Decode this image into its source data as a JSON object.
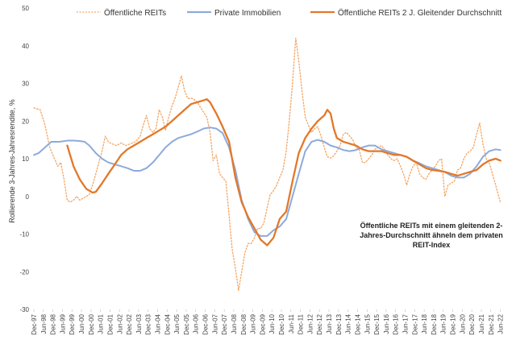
{
  "chart_data": {
    "type": "line",
    "title": "",
    "ylabel": "Rollierende 3-Jahres-Jahresrendite, %",
    "xlabel": "",
    "ylim": [
      -30,
      50
    ],
    "yticks": [
      -30,
      -20,
      -10,
      0,
      10,
      20,
      30,
      40,
      50
    ],
    "grid": false,
    "legend_position": "top",
    "xlim": [
      1997.917,
      2022.9
    ],
    "x_tick_labels": [
      "Dec-97",
      "Jun-98",
      "Dec-98",
      "Jun-99",
      "Dec-99",
      "Jun-00",
      "Dec-00",
      "Jun-01",
      "Dec-01",
      "Jun-02",
      "Dec-02",
      "Jun-03",
      "Dec-03",
      "Jun-04",
      "Dec-04",
      "Jun-05",
      "Dec-05",
      "Jun-06",
      "Dec-06",
      "Jun-07",
      "Dec-07",
      "Jun-08",
      "Dec-08",
      "Jun-09",
      "Dec-09",
      "Jun-10",
      "Dec-10",
      "Jun-11",
      "Dec-11",
      "Jun-12",
      "Dec-12",
      "Jun-13",
      "Dec-13",
      "Jun-14",
      "Dec-14",
      "Jun-15",
      "Dec-15",
      "Jun-16",
      "Dec-16",
      "Jun-17",
      "Dec-17",
      "Jun-18",
      "Dec-18",
      "Jun-19",
      "Dec-19",
      "Jun-20",
      "Dec-20",
      "Jun-21",
      "Dec-21",
      "Jun-22"
    ],
    "annotation": [
      "Öffentliche REITs mit einem gleitenden 2-",
      "Jahres-Durchschnitt ähneln dem privaten",
      "REIT-Index"
    ],
    "series": [
      {
        "name": "Öffentliche REITs",
        "color": "#f4a460",
        "style": "dotted",
        "points": [
          [
            1997.92,
            23.5
          ],
          [
            1998.25,
            23
          ],
          [
            1998.5,
            19
          ],
          [
            1998.75,
            13
          ],
          [
            1999.0,
            10
          ],
          [
            1999.17,
            8
          ],
          [
            1999.33,
            9
          ],
          [
            1999.5,
            4.5
          ],
          [
            1999.67,
            -1
          ],
          [
            1999.83,
            -1.5
          ],
          [
            2000.0,
            -1
          ],
          [
            2000.17,
            0
          ],
          [
            2000.33,
            -1
          ],
          [
            2000.5,
            -0.5
          ],
          [
            2000.67,
            0
          ],
          [
            2000.83,
            0.5
          ],
          [
            2001.0,
            3
          ],
          [
            2001.17,
            6
          ],
          [
            2001.33,
            9
          ],
          [
            2001.5,
            12
          ],
          [
            2001.67,
            16
          ],
          [
            2001.83,
            14.5
          ],
          [
            2002.0,
            14
          ],
          [
            2002.25,
            13.5
          ],
          [
            2002.5,
            14.2
          ],
          [
            2002.75,
            13.5
          ],
          [
            2003.0,
            14
          ],
          [
            2003.25,
            14.5
          ],
          [
            2003.5,
            16
          ],
          [
            2003.67,
            19
          ],
          [
            2003.83,
            21.5
          ],
          [
            2004.0,
            18
          ],
          [
            2004.17,
            17
          ],
          [
            2004.33,
            18
          ],
          [
            2004.5,
            23
          ],
          [
            2004.67,
            21
          ],
          [
            2004.83,
            17.5
          ],
          [
            2005.0,
            21
          ],
          [
            2005.17,
            24
          ],
          [
            2005.33,
            26
          ],
          [
            2005.5,
            29
          ],
          [
            2005.67,
            32
          ],
          [
            2005.83,
            28
          ],
          [
            2006.0,
            26
          ],
          [
            2006.25,
            26
          ],
          [
            2006.5,
            25
          ],
          [
            2006.75,
            23
          ],
          [
            2007.0,
            21
          ],
          [
            2007.17,
            17
          ],
          [
            2007.33,
            9.5
          ],
          [
            2007.5,
            11
          ],
          [
            2007.67,
            6
          ],
          [
            2007.83,
            5
          ],
          [
            2008.0,
            4
          ],
          [
            2008.17,
            -5
          ],
          [
            2008.33,
            -14
          ],
          [
            2008.5,
            -19
          ],
          [
            2008.67,
            -25
          ],
          [
            2008.83,
            -20
          ],
          [
            2009.0,
            -15
          ],
          [
            2009.17,
            -12.5
          ],
          [
            2009.33,
            -12.5
          ],
          [
            2009.5,
            -11
          ],
          [
            2009.67,
            -8.5
          ],
          [
            2009.83,
            -8.5
          ],
          [
            2010.0,
            -7
          ],
          [
            2010.17,
            -3
          ],
          [
            2010.33,
            0.5
          ],
          [
            2010.5,
            1.5
          ],
          [
            2010.67,
            3
          ],
          [
            2010.83,
            5
          ],
          [
            2011.0,
            7
          ],
          [
            2011.17,
            12
          ],
          [
            2011.33,
            20
          ],
          [
            2011.5,
            30
          ],
          [
            2011.67,
            42
          ],
          [
            2011.83,
            36
          ],
          [
            2012.0,
            28
          ],
          [
            2012.17,
            21
          ],
          [
            2012.33,
            19
          ],
          [
            2012.5,
            17
          ],
          [
            2012.67,
            18
          ],
          [
            2012.83,
            18.5
          ],
          [
            2013.0,
            16
          ],
          [
            2013.17,
            13
          ],
          [
            2013.33,
            10.5
          ],
          [
            2013.5,
            10.2
          ],
          [
            2013.67,
            10.8
          ],
          [
            2013.83,
            12
          ],
          [
            2014.0,
            13.5
          ],
          [
            2014.17,
            16.5
          ],
          [
            2014.33,
            17
          ],
          [
            2014.5,
            16
          ],
          [
            2014.67,
            15
          ],
          [
            2014.83,
            13
          ],
          [
            2015.0,
            12.5
          ],
          [
            2015.17,
            9
          ],
          [
            2015.33,
            9
          ],
          [
            2015.5,
            10
          ],
          [
            2015.67,
            11
          ],
          [
            2015.83,
            12.5
          ],
          [
            2016.0,
            13
          ],
          [
            2016.17,
            13.5
          ],
          [
            2016.33,
            12.5
          ],
          [
            2016.5,
            11
          ],
          [
            2016.67,
            10
          ],
          [
            2016.83,
            9.5
          ],
          [
            2017.0,
            10
          ],
          [
            2017.17,
            8
          ],
          [
            2017.33,
            6
          ],
          [
            2017.5,
            3
          ],
          [
            2017.67,
            6
          ],
          [
            2017.83,
            8
          ],
          [
            2018.0,
            9
          ],
          [
            2018.17,
            6
          ],
          [
            2018.33,
            5
          ],
          [
            2018.5,
            4.5
          ],
          [
            2018.67,
            6
          ],
          [
            2018.83,
            7
          ],
          [
            2019.0,
            8
          ],
          [
            2019.17,
            9.5
          ],
          [
            2019.33,
            10
          ],
          [
            2019.5,
            0
          ],
          [
            2019.67,
            3
          ],
          [
            2019.83,
            3.5
          ],
          [
            2020.0,
            4
          ],
          [
            2020.17,
            7
          ],
          [
            2020.33,
            7.5
          ],
          [
            2020.5,
            10
          ],
          [
            2020.67,
            11.5
          ],
          [
            2020.83,
            12
          ],
          [
            2021.0,
            13
          ],
          [
            2021.17,
            16.5
          ],
          [
            2021.33,
            19.5
          ],
          [
            2021.5,
            14
          ],
          [
            2021.67,
            10
          ],
          [
            2021.83,
            9
          ],
          [
            2022.0,
            6
          ],
          [
            2022.17,
            3
          ],
          [
            2022.33,
            0
          ],
          [
            2022.42,
            -1.5
          ]
        ]
      },
      {
        "name": "Private Immobilien",
        "color": "#8eaadb",
        "style": "solid",
        "points": [
          [
            1997.92,
            11
          ],
          [
            1998.17,
            11.5
          ],
          [
            1998.5,
            13
          ],
          [
            1998.83,
            14.5
          ],
          [
            1999.25,
            14.5
          ],
          [
            1999.67,
            14.8
          ],
          [
            2000.0,
            14.8
          ],
          [
            2000.33,
            14.7
          ],
          [
            2000.58,
            14.5
          ],
          [
            2000.83,
            13.5
          ],
          [
            2001.17,
            11.5
          ],
          [
            2001.5,
            10
          ],
          [
            2001.83,
            9
          ],
          [
            2002.17,
            8.5
          ],
          [
            2002.5,
            8
          ],
          [
            2002.83,
            7.5
          ],
          [
            2003.17,
            6.8
          ],
          [
            2003.5,
            6.8
          ],
          [
            2003.83,
            7.5
          ],
          [
            2004.17,
            9
          ],
          [
            2004.5,
            11
          ],
          [
            2004.83,
            13
          ],
          [
            2005.17,
            14.5
          ],
          [
            2005.5,
            15.5
          ],
          [
            2005.83,
            16
          ],
          [
            2006.17,
            16.5
          ],
          [
            2006.5,
            17.2
          ],
          [
            2006.83,
            18
          ],
          [
            2007.17,
            18.3
          ],
          [
            2007.5,
            18
          ],
          [
            2007.83,
            16.8
          ],
          [
            2008.17,
            13
          ],
          [
            2008.5,
            7
          ],
          [
            2008.83,
            -1
          ],
          [
            2009.17,
            -6
          ],
          [
            2009.5,
            -9.5
          ],
          [
            2009.83,
            -10.5
          ],
          [
            2010.17,
            -10.5
          ],
          [
            2010.5,
            -9
          ],
          [
            2010.83,
            -8
          ],
          [
            2011.17,
            -6
          ],
          [
            2011.5,
            0
          ],
          [
            2011.83,
            6
          ],
          [
            2012.17,
            12
          ],
          [
            2012.5,
            14.5
          ],
          [
            2012.83,
            15
          ],
          [
            2013.17,
            14.5
          ],
          [
            2013.5,
            13.5
          ],
          [
            2013.83,
            13
          ],
          [
            2014.17,
            12.3
          ],
          [
            2014.5,
            12
          ],
          [
            2014.83,
            12.3
          ],
          [
            2015.17,
            13
          ],
          [
            2015.5,
            13.5
          ],
          [
            2015.83,
            13.5
          ],
          [
            2016.17,
            12.5
          ],
          [
            2016.5,
            12
          ],
          [
            2016.83,
            11.5
          ],
          [
            2017.17,
            11
          ],
          [
            2017.5,
            10.5
          ],
          [
            2017.83,
            9.5
          ],
          [
            2018.17,
            8.8
          ],
          [
            2018.5,
            8
          ],
          [
            2018.83,
            7.5
          ],
          [
            2019.17,
            7
          ],
          [
            2019.5,
            6.5
          ],
          [
            2019.83,
            5.5
          ],
          [
            2020.17,
            5
          ],
          [
            2020.5,
            5
          ],
          [
            2020.83,
            6
          ],
          [
            2021.17,
            8
          ],
          [
            2021.5,
            10.5
          ],
          [
            2021.83,
            12
          ],
          [
            2022.17,
            12.5
          ],
          [
            2022.42,
            12.3
          ]
        ]
      },
      {
        "name": "Öffentliche REITs 2 J. Gleitender Durchschnitt",
        "color": "#e2782a",
        "style": "solid",
        "points": [
          [
            1999.67,
            13.5
          ],
          [
            2000.0,
            8
          ],
          [
            2000.33,
            4.5
          ],
          [
            2000.67,
            2
          ],
          [
            2001.0,
            1
          ],
          [
            2001.17,
            1.2
          ],
          [
            2001.5,
            3.5
          ],
          [
            2001.83,
            6
          ],
          [
            2002.17,
            8.5
          ],
          [
            2002.5,
            11
          ],
          [
            2002.83,
            12.5
          ],
          [
            2003.17,
            13.5
          ],
          [
            2003.5,
            14.5
          ],
          [
            2003.83,
            15.5
          ],
          [
            2004.17,
            16.5
          ],
          [
            2004.5,
            17.5
          ],
          [
            2004.83,
            18.5
          ],
          [
            2005.17,
            20
          ],
          [
            2005.5,
            21.5
          ],
          [
            2005.83,
            23
          ],
          [
            2006.17,
            24.5
          ],
          [
            2006.5,
            25
          ],
          [
            2006.83,
            25.5
          ],
          [
            2007.0,
            25.8
          ],
          [
            2007.17,
            25
          ],
          [
            2007.5,
            22
          ],
          [
            2007.83,
            18.5
          ],
          [
            2008.17,
            14.5
          ],
          [
            2008.5,
            5
          ],
          [
            2008.83,
            -1.5
          ],
          [
            2009.17,
            -5.5
          ],
          [
            2009.5,
            -8.5
          ],
          [
            2009.83,
            -11.5
          ],
          [
            2010.17,
            -13
          ],
          [
            2010.5,
            -11
          ],
          [
            2010.83,
            -6
          ],
          [
            2011.17,
            -4
          ],
          [
            2011.5,
            4
          ],
          [
            2011.83,
            11.5
          ],
          [
            2012.17,
            15.5
          ],
          [
            2012.5,
            18
          ],
          [
            2012.83,
            20
          ],
          [
            2013.17,
            21.5
          ],
          [
            2013.33,
            23
          ],
          [
            2013.5,
            22
          ],
          [
            2013.67,
            18
          ],
          [
            2013.83,
            15.5
          ],
          [
            2014.17,
            14.5
          ],
          [
            2014.5,
            14
          ],
          [
            2014.83,
            13.5
          ],
          [
            2015.17,
            12.5
          ],
          [
            2015.5,
            12
          ],
          [
            2015.83,
            12
          ],
          [
            2016.17,
            12
          ],
          [
            2016.5,
            11.5
          ],
          [
            2016.83,
            11
          ],
          [
            2017.17,
            11
          ],
          [
            2017.5,
            10.5
          ],
          [
            2017.83,
            9.5
          ],
          [
            2018.17,
            8.5
          ],
          [
            2018.5,
            7.5
          ],
          [
            2018.83,
            7
          ],
          [
            2019.17,
            6.8
          ],
          [
            2019.5,
            6.5
          ],
          [
            2019.83,
            6
          ],
          [
            2020.17,
            5.5
          ],
          [
            2020.5,
            6
          ],
          [
            2020.83,
            6.5
          ],
          [
            2021.17,
            7
          ],
          [
            2021.5,
            8.5
          ],
          [
            2021.83,
            9.5
          ],
          [
            2022.17,
            10
          ],
          [
            2022.42,
            9.5
          ]
        ]
      }
    ]
  }
}
